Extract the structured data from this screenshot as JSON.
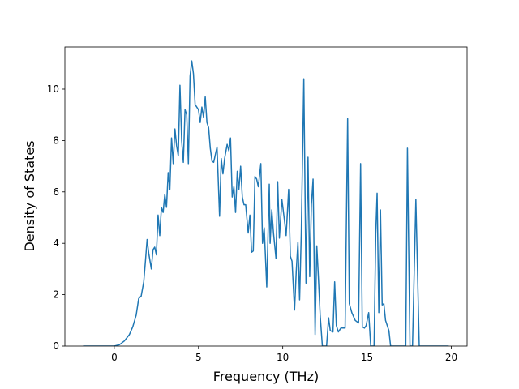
{
  "chart_data": {
    "type": "line",
    "xlabel": "Frequency (THz)",
    "ylabel": "Density of States",
    "x": [
      -1.85,
      0,
      0.3,
      0.6,
      0.9,
      1.1,
      1.3,
      1.45,
      1.6,
      1.75,
      1.85,
      1.95,
      2.05,
      2.2,
      2.3,
      2.4,
      2.5,
      2.6,
      2.7,
      2.8,
      2.9,
      3.0,
      3.1,
      3.2,
      3.3,
      3.4,
      3.5,
      3.6,
      3.7,
      3.8,
      3.9,
      4.0,
      4.1,
      4.2,
      4.3,
      4.4,
      4.5,
      4.6,
      4.7,
      4.8,
      4.9,
      5.0,
      5.1,
      5.2,
      5.3,
      5.4,
      5.5,
      5.6,
      5.7,
      5.8,
      5.9,
      6.1,
      6.25,
      6.35,
      6.45,
      6.55,
      6.7,
      6.8,
      6.9,
      7.0,
      7.1,
      7.2,
      7.3,
      7.4,
      7.5,
      7.6,
      7.7,
      7.8,
      7.95,
      8.05,
      8.15,
      8.25,
      8.35,
      8.45,
      8.55,
      8.7,
      8.8,
      8.9,
      9.05,
      9.2,
      9.25,
      9.35,
      9.45,
      9.6,
      9.7,
      9.8,
      9.95,
      10.1,
      10.2,
      10.35,
      10.45,
      10.55,
      10.7,
      10.8,
      10.9,
      11.0,
      11.1,
      11.25,
      11.38,
      11.5,
      11.6,
      11.7,
      11.8,
      11.92,
      12.02,
      12.12,
      12.22,
      12.35,
      12.6,
      12.72,
      12.82,
      12.98,
      13.08,
      13.18,
      13.3,
      13.45,
      13.7,
      13.85,
      13.95,
      14.1,
      14.3,
      14.5,
      14.62,
      14.72,
      14.85,
      14.95,
      15.1,
      15.22,
      15.42,
      15.52,
      15.6,
      15.7,
      15.8,
      15.9,
      16.0,
      16.1,
      16.3,
      16.4,
      17.3,
      17.4,
      17.55,
      17.7,
      17.9,
      18.1,
      19.85
    ],
    "series": [
      {
        "color": "#1f77b4",
        "values": [
          0,
          0,
          0.05,
          0.2,
          0.45,
          0.75,
          1.2,
          1.85,
          1.95,
          2.5,
          3.3,
          4.15,
          3.6,
          3.0,
          3.75,
          3.85,
          3.55,
          5.1,
          4.3,
          5.4,
          5.2,
          5.9,
          5.4,
          6.75,
          6.1,
          8.1,
          7.1,
          8.45,
          7.8,
          7.4,
          10.15,
          8.0,
          7.15,
          9.2,
          9.0,
          7.1,
          10.5,
          11.1,
          10.6,
          9.4,
          9.3,
          9.2,
          8.7,
          9.3,
          8.9,
          9.7,
          8.7,
          8.5,
          7.7,
          7.2,
          7.15,
          7.75,
          5.05,
          7.3,
          6.7,
          7.3,
          7.85,
          7.6,
          8.1,
          5.8,
          6.2,
          5.2,
          6.8,
          6.1,
          7.0,
          5.8,
          5.5,
          5.5,
          4.4,
          5.1,
          3.65,
          3.7,
          6.6,
          6.5,
          6.2,
          7.1,
          4.0,
          4.6,
          2.3,
          6.3,
          4.0,
          5.3,
          4.4,
          3.4,
          6.4,
          4.2,
          5.7,
          4.9,
          4.3,
          6.1,
          3.5,
          3.3,
          1.4,
          2.9,
          4.05,
          1.8,
          4.4,
          10.4,
          2.45,
          7.35,
          2.7,
          5.5,
          6.5,
          0.45,
          3.9,
          2.6,
          1.2,
          0,
          0,
          1.1,
          0.6,
          0.55,
          2.5,
          0.8,
          0.55,
          0.7,
          0.7,
          8.85,
          1.65,
          1.3,
          1.0,
          0.9,
          7.1,
          0.75,
          0.7,
          0.8,
          1.3,
          0,
          0,
          4.4,
          5.95,
          1.3,
          5.3,
          1.6,
          1.65,
          1.0,
          0.6,
          0,
          0,
          7.7,
          0,
          0,
          5.7,
          0,
          0
        ]
      }
    ],
    "xlim": [
      -2.93,
      20.94
    ],
    "ylim": [
      0,
      11.64
    ],
    "xticks": [
      0,
      5,
      10,
      15,
      20
    ],
    "yticks": [
      0,
      2,
      4,
      6,
      8,
      10
    ]
  }
}
